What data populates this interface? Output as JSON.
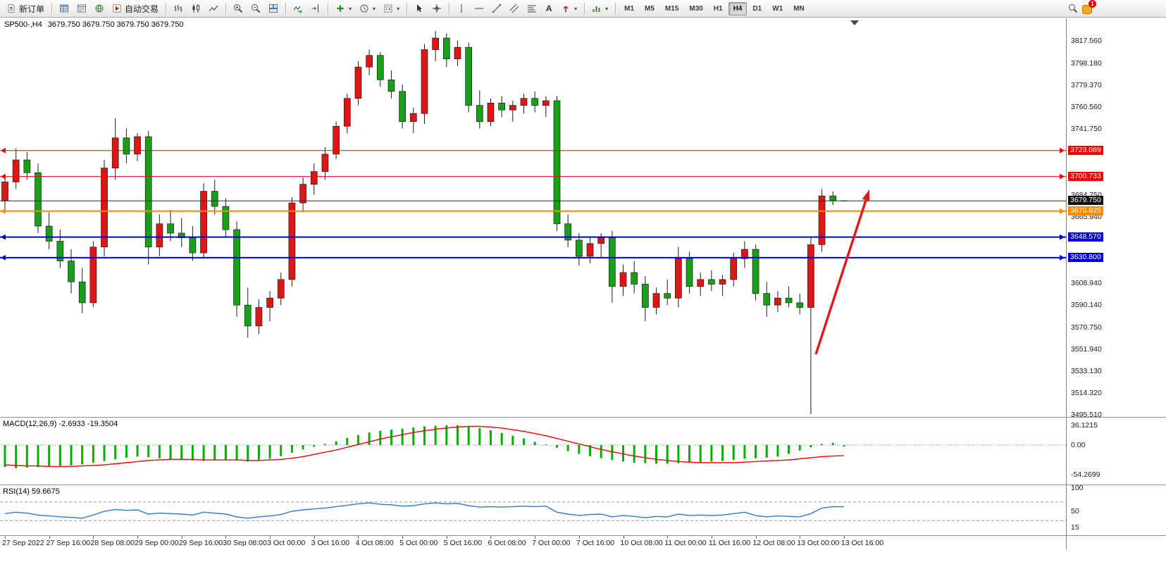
{
  "toolbar": {
    "new_order": "新订单",
    "autotrading": "自动交易",
    "text_tool": "A",
    "timeframes": [
      "M1",
      "M5",
      "M15",
      "M30",
      "H1",
      "H4",
      "D1",
      "W1",
      "MN"
    ],
    "active_timeframe": "H4",
    "alert_badge": "1"
  },
  "colors": {
    "up": "#e01616",
    "down": "#18a018",
    "wick": "#1c1c1c",
    "macd_hist": "#00b000",
    "macd_signal": "#ff0000",
    "rsi": "#2a7ad2",
    "arrow": "#e01818",
    "line_red": "#f40000",
    "line_orange": "#ff8a00",
    "line_blue": "#0000d0",
    "line_black": "#2a2a2a"
  },
  "chart_data": {
    "type": "candlestick",
    "symbol": "SP500-",
    "timeframe": "H4",
    "title": "SP500-,H4",
    "ohlc_display": "3679.750 3679.750 3679.750 3679.750",
    "price_axis_range": [
      3495.51,
      3826.0
    ],
    "candles": [
      [
        3680,
        3700,
        3670,
        3696
      ],
      [
        3696,
        3725,
        3690,
        3715
      ],
      [
        3715,
        3722,
        3698,
        3704
      ],
      [
        3704,
        3712,
        3652,
        3658
      ],
      [
        3658,
        3670,
        3638,
        3645
      ],
      [
        3645,
        3655,
        3622,
        3628
      ],
      [
        3628,
        3638,
        3600,
        3610
      ],
      [
        3610,
        3622,
        3583,
        3592
      ],
      [
        3592,
        3645,
        3588,
        3640
      ],
      [
        3640,
        3715,
        3632,
        3708
      ],
      [
        3708,
        3751,
        3698,
        3734
      ],
      [
        3734,
        3742,
        3712,
        3720
      ],
      [
        3720,
        3738,
        3714,
        3735
      ],
      [
        3735,
        3740,
        3625,
        3640
      ],
      [
        3640,
        3668,
        3632,
        3660
      ],
      [
        3660,
        3672,
        3645,
        3652
      ],
      [
        3652,
        3665,
        3640,
        3648
      ],
      [
        3648,
        3658,
        3628,
        3635
      ],
      [
        3635,
        3695,
        3630,
        3688
      ],
      [
        3688,
        3698,
        3668,
        3675
      ],
      [
        3675,
        3682,
        3648,
        3655
      ],
      [
        3655,
        3662,
        3580,
        3590
      ],
      [
        3590,
        3605,
        3562,
        3572
      ],
      [
        3572,
        3595,
        3565,
        3588
      ],
      [
        3588,
        3602,
        3576,
        3596
      ],
      [
        3596,
        3618,
        3590,
        3612
      ],
      [
        3612,
        3683,
        3606,
        3678
      ],
      [
        3678,
        3700,
        3670,
        3694
      ],
      [
        3694,
        3712,
        3685,
        3705
      ],
      [
        3705,
        3726,
        3698,
        3720
      ],
      [
        3720,
        3748,
        3716,
        3744
      ],
      [
        3744,
        3772,
        3738,
        3768
      ],
      [
        3768,
        3800,
        3762,
        3795
      ],
      [
        3795,
        3810,
        3788,
        3805
      ],
      [
        3805,
        3808,
        3778,
        3784
      ],
      [
        3784,
        3792,
        3768,
        3774
      ],
      [
        3774,
        3780,
        3742,
        3748
      ],
      [
        3748,
        3760,
        3738,
        3755
      ],
      [
        3755,
        3815,
        3746,
        3810
      ],
      [
        3810,
        3826,
        3800,
        3820
      ],
      [
        3820,
        3824,
        3795,
        3802
      ],
      [
        3802,
        3818,
        3796,
        3812
      ],
      [
        3812,
        3816,
        3756,
        3762
      ],
      [
        3762,
        3775,
        3742,
        3748
      ],
      [
        3748,
        3768,
        3744,
        3764
      ],
      [
        3764,
        3770,
        3752,
        3758
      ],
      [
        3758,
        3766,
        3748,
        3762
      ],
      [
        3762,
        3772,
        3755,
        3768
      ],
      [
        3768,
        3774,
        3756,
        3762
      ],
      [
        3762,
        3770,
        3752,
        3766
      ],
      [
        3766,
        3770,
        3654,
        3660
      ],
      [
        3660,
        3668,
        3640,
        3646
      ],
      [
        3646,
        3652,
        3624,
        3632
      ],
      [
        3632,
        3648,
        3626,
        3643
      ],
      [
        3643,
        3652,
        3630,
        3648
      ],
      [
        3648,
        3654,
        3592,
        3606
      ],
      [
        3606,
        3625,
        3598,
        3618
      ],
      [
        3618,
        3628,
        3600,
        3608
      ],
      [
        3608,
        3615,
        3576,
        3588
      ],
      [
        3588,
        3605,
        3582,
        3600
      ],
      [
        3600,
        3612,
        3590,
        3596
      ],
      [
        3596,
        3640,
        3588,
        3630
      ],
      [
        3630,
        3636,
        3600,
        3606
      ],
      [
        3606,
        3618,
        3598,
        3612
      ],
      [
        3612,
        3620,
        3602,
        3608
      ],
      [
        3608,
        3616,
        3598,
        3612
      ],
      [
        3612,
        3635,
        3606,
        3630
      ],
      [
        3630,
        3645,
        3622,
        3638
      ],
      [
        3638,
        3642,
        3594,
        3600
      ],
      [
        3600,
        3610,
        3580,
        3590
      ],
      [
        3590,
        3602,
        3584,
        3596
      ],
      [
        3596,
        3606,
        3588,
        3592
      ],
      [
        3592,
        3600,
        3582,
        3588
      ],
      [
        3588,
        3648,
        3496,
        3642
      ],
      [
        3642,
        3690,
        3636,
        3684
      ],
      [
        3684,
        3688,
        3676,
        3680
      ],
      [
        3679.75,
        3679.75,
        3679.75,
        3679.75
      ]
    ],
    "hlines": [
      {
        "price": 3723.089,
        "color": "#f40000",
        "width": 1,
        "markers": true
      },
      {
        "price": 3700.733,
        "color": "#f40000",
        "width": 1,
        "markers": true
      },
      {
        "price": 3670.925,
        "color": "#ff8a00",
        "width": 2,
        "markers": true
      },
      {
        "price": 3648.57,
        "color": "#0000d0",
        "width": 2,
        "markers": true
      },
      {
        "price": 3630.8,
        "color": "#0000d0",
        "width": 2,
        "markers": true
      },
      {
        "price": 3679.75,
        "color": "#2a2a2a",
        "width": 1,
        "markers": false
      }
    ],
    "price_axis_labels": [
      {
        "text": "3817.560",
        "price": 3817.56
      },
      {
        "text": "3798.180",
        "price": 3798.18
      },
      {
        "text": "3779.370",
        "price": 3779.37
      },
      {
        "text": "3760.560",
        "price": 3760.56
      },
      {
        "text": "3741.750",
        "price": 3741.75
      },
      {
        "text": "3684.750",
        "price": 3684.75
      },
      {
        "text": "3665.940",
        "price": 3665.94
      },
      {
        "text": "3608.940",
        "price": 3608.94
      },
      {
        "text": "3590.140",
        "price": 3590.14
      },
      {
        "text": "3570.750",
        "price": 3570.75
      },
      {
        "text": "3551.940",
        "price": 3551.94
      },
      {
        "text": "3533.130",
        "price": 3533.13
      },
      {
        "text": "3514.320",
        "price": 3514.32
      },
      {
        "text": "3495.510",
        "price": 3495.51
      }
    ],
    "price_line_labels": [
      {
        "text": "3723.089",
        "price": 3723.089,
        "bg": "#f40000",
        "fg": "#ffffff"
      },
      {
        "text": "3700.733",
        "price": 3700.733,
        "bg": "#f40000",
        "fg": "#ffffff"
      },
      {
        "text": "3679.750",
        "price": 3679.75,
        "bg": "#111111",
        "fg": "#ffffff"
      },
      {
        "text": "3670.925",
        "price": 3670.925,
        "bg": "#ff8a00",
        "fg": "#ffffff"
      },
      {
        "text": "3648.570",
        "price": 3648.57,
        "bg": "#0000d0",
        "fg": "#ffffff"
      },
      {
        "text": "3630.800",
        "price": 3630.8,
        "bg": "#0000d0",
        "fg": "#ffffff"
      }
    ],
    "time_labels": [
      "27 Sep 2022",
      "27 Sep 16:00",
      "28 Sep 08:00",
      "29 Sep 00:00",
      "29 Sep 16:00",
      "30 Sep 08:00",
      "3 Oct 00:00",
      "3 Oct 16:00",
      "4 Oct 08:00",
      "5 Oct 00:00",
      "5 Oct 16:00",
      "6 Oct 08:00",
      "7 Oct 00:00",
      "7 Oct 16:00",
      "10 Oct 08:00",
      "11 Oct 00:00",
      "11 Oct 16:00",
      "12 Oct 08:00",
      "13 Oct 00:00",
      "13 Oct 16:00"
    ],
    "macd": {
      "name": "MACD(12,26,9)",
      "values_text": "-2.6933 -19.3504",
      "axis": [
        {
          "text": "36.1215",
          "value": 36.1215
        },
        {
          "text": "0.00",
          "value": 0
        },
        {
          "text": "-54.2699",
          "value": -54.2699
        }
      ],
      "histogram": [
        -40,
        -42,
        -41,
        -40,
        -39,
        -38,
        -37,
        -35,
        -32,
        -29,
        -26,
        -23,
        -21,
        -22,
        -24,
        -26,
        -27,
        -28,
        -29,
        -28,
        -27,
        -28,
        -30,
        -28,
        -25,
        -20,
        -14,
        -8,
        -3,
        2,
        7,
        13,
        18,
        23,
        26,
        28,
        30,
        32,
        34,
        35,
        36,
        36,
        34,
        31,
        27,
        22,
        17,
        12,
        6,
        1,
        -5,
        -11,
        -16,
        -20,
        -24,
        -27,
        -30,
        -32,
        -33,
        -34,
        -34,
        -33,
        -32,
        -31,
        -30,
        -29,
        -27,
        -25,
        -24,
        -23,
        -21,
        -16,
        -10,
        -4,
        2,
        4,
        -2.69
      ],
      "signal": [
        -36,
        -37,
        -38,
        -38,
        -39,
        -39,
        -39,
        -38,
        -37,
        -36,
        -34,
        -32,
        -30,
        -28,
        -27,
        -26,
        -26,
        -26,
        -27,
        -27,
        -27,
        -27,
        -28,
        -28,
        -27,
        -26,
        -24,
        -21,
        -17,
        -13,
        -9,
        -4,
        1,
        6,
        11,
        15,
        19,
        23,
        26,
        29,
        31,
        33,
        34,
        34,
        33,
        31,
        28,
        25,
        21,
        17,
        12,
        7,
        2,
        -3,
        -8,
        -12,
        -16,
        -20,
        -23,
        -26,
        -28,
        -30,
        -31,
        -32,
        -32,
        -32,
        -32,
        -31,
        -30,
        -29,
        -28,
        -27,
        -25,
        -23,
        -21,
        -20,
        -19.35
      ]
    },
    "rsi": {
      "name": "RSI(14)",
      "value_text": "59.6675",
      "axis": [
        {
          "text": "100",
          "value": 100
        },
        {
          "text": "50",
          "value": 50
        },
        {
          "text": "15",
          "value": 15
        }
      ],
      "levels": [
        70,
        30
      ],
      "series": [
        45,
        48,
        46,
        42,
        40,
        38,
        37,
        35,
        42,
        50,
        54,
        52,
        53,
        44,
        46,
        45,
        44,
        42,
        48,
        46,
        44,
        38,
        35,
        38,
        40,
        43,
        50,
        53,
        55,
        57,
        60,
        63,
        66,
        68,
        65,
        64,
        61,
        62,
        66,
        68,
        66,
        67,
        62,
        59,
        60,
        59,
        60,
        61,
        60,
        61,
        48,
        44,
        41,
        43,
        44,
        38,
        41,
        39,
        36,
        39,
        38,
        44,
        41,
        42,
        41,
        42,
        45,
        48,
        41,
        38,
        40,
        39,
        38,
        45,
        57,
        60,
        59.67
      ]
    },
    "arrow": {
      "from": [
        1158,
        503
      ],
      "to": [
        1234,
        269
      ]
    }
  }
}
